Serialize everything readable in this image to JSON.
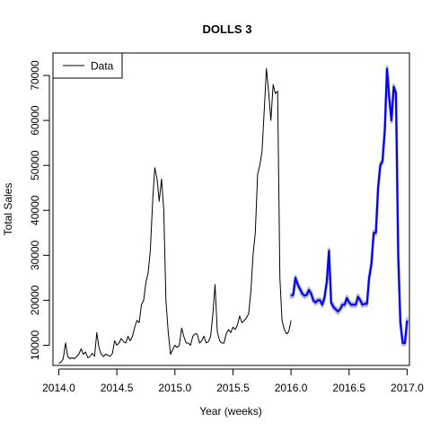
{
  "chart_data": {
    "type": "line",
    "title": "DOLLS 3",
    "xlabel": "Year (weeks)",
    "ylabel": "Total Sales",
    "xlim": [
      2013.95,
      2017.02
    ],
    "ylim": [
      5500,
      75000
    ],
    "xticks": [
      2014.0,
      2014.5,
      2015.0,
      2015.5,
      2016.0,
      2016.5,
      2017.0
    ],
    "xtick_labels": [
      "2014.0",
      "2014.5",
      "2015.0",
      "2015.5",
      "2016.0",
      "2016.5",
      "2017.0"
    ],
    "yticks": [
      10000,
      20000,
      30000,
      40000,
      50000,
      60000,
      70000
    ],
    "ytick_labels": [
      "10000",
      "20000",
      "30000",
      "40000",
      "50000",
      "60000",
      "70000"
    ],
    "grid": false,
    "legend": {
      "position": "top-left",
      "entries": [
        "Data"
      ]
    },
    "series": [
      {
        "name": "Data",
        "color": "#000000",
        "x": [
          2014.0,
          2014.019,
          2014.038,
          2014.058,
          2014.077,
          2014.096,
          2014.115,
          2014.135,
          2014.154,
          2014.173,
          2014.192,
          2014.212,
          2014.231,
          2014.25,
          2014.269,
          2014.288,
          2014.308,
          2014.327,
          2014.346,
          2014.365,
          2014.385,
          2014.404,
          2014.423,
          2014.442,
          2014.462,
          2014.481,
          2014.5,
          2014.519,
          2014.538,
          2014.558,
          2014.577,
          2014.596,
          2014.615,
          2014.635,
          2014.654,
          2014.673,
          2014.692,
          2014.712,
          2014.731,
          2014.75,
          2014.769,
          2014.788,
          2014.808,
          2014.827,
          2014.846,
          2014.865,
          2014.885,
          2014.904,
          2014.923,
          2014.942,
          2014.962,
          2014.981,
          2015.0,
          2015.019,
          2015.038,
          2015.058,
          2015.077,
          2015.096,
          2015.115,
          2015.135,
          2015.154,
          2015.173,
          2015.192,
          2015.212,
          2015.231,
          2015.25,
          2015.269,
          2015.288,
          2015.308,
          2015.327,
          2015.346,
          2015.365,
          2015.385,
          2015.404,
          2015.423,
          2015.442,
          2015.462,
          2015.481,
          2015.5,
          2015.519,
          2015.538,
          2015.558,
          2015.577,
          2015.596,
          2015.615,
          2015.635,
          2015.654,
          2015.673,
          2015.692,
          2015.712,
          2015.731,
          2015.75,
          2015.769,
          2015.788,
          2015.808,
          2015.827,
          2015.846,
          2015.865,
          2015.885,
          2015.904,
          2015.923,
          2015.942,
          2015.962,
          2015.981,
          2016.0
        ],
        "y": [
          6000,
          6200,
          7000,
          10500,
          7500,
          7000,
          7200,
          7000,
          7500,
          8000,
          9200,
          8000,
          8500,
          7200,
          7500,
          8200,
          7500,
          12800,
          9500,
          8000,
          7500,
          8000,
          7800,
          7500,
          8200,
          11000,
          10000,
          10500,
          11500,
          10800,
          10500,
          12000,
          11000,
          12000,
          14000,
          15500,
          15000,
          19000,
          20000,
          24000,
          26000,
          31000,
          42000,
          49500,
          47000,
          42000,
          47000,
          40000,
          20000,
          13000,
          8000,
          9000,
          10000,
          9500,
          10000,
          13800,
          12000,
          10500,
          10500,
          10000,
          12000,
          12500,
          12500,
          10500,
          11000,
          12000,
          10500,
          10800,
          12000,
          17000,
          23500,
          13000,
          11000,
          10500,
          10500,
          12500,
          13500,
          12800,
          14000,
          13500,
          14500,
          16500,
          15000,
          15500,
          16000,
          17000,
          22000,
          30000,
          35000,
          48000,
          50000,
          53000,
          62000,
          71500,
          66000,
          60000,
          68000,
          66000,
          66500,
          25000,
          15500,
          13500,
          12500,
          13000,
          15500
        ]
      },
      {
        "name": "",
        "color": "#0000ff",
        "band_color": "#bfc0cf",
        "x": [
          2016.0,
          2016.019,
          2016.038,
          2016.058,
          2016.077,
          2016.096,
          2016.115,
          2016.135,
          2016.154,
          2016.173,
          2016.192,
          2016.212,
          2016.231,
          2016.25,
          2016.269,
          2016.288,
          2016.308,
          2016.327,
          2016.346,
          2016.365,
          2016.385,
          2016.404,
          2016.423,
          2016.442,
          2016.462,
          2016.481,
          2016.5,
          2016.519,
          2016.538,
          2016.558,
          2016.577,
          2016.596,
          2016.615,
          2016.635,
          2016.654,
          2016.673,
          2016.692,
          2016.712,
          2016.731,
          2016.75,
          2016.769,
          2016.788,
          2016.808,
          2016.827,
          2016.846,
          2016.865,
          2016.885,
          2016.904,
          2016.923,
          2016.942,
          2016.962,
          2016.981,
          2017.0
        ],
        "y": [
          21000,
          21200,
          25000,
          23500,
          22500,
          21500,
          21000,
          21200,
          22300,
          21500,
          20000,
          19500,
          20000,
          20000,
          19000,
          20500,
          24000,
          31000,
          19500,
          18500,
          18000,
          17500,
          18000,
          19000,
          19000,
          20500,
          19500,
          19000,
          19000,
          19000,
          20800,
          20000,
          19000,
          19200,
          19200,
          25000,
          28000,
          35000,
          35000,
          45000,
          50000,
          51000,
          58000,
          71500,
          65000,
          60000,
          67500,
          66000,
          30000,
          15000,
          10500,
          10500,
          15500
        ]
      }
    ]
  }
}
